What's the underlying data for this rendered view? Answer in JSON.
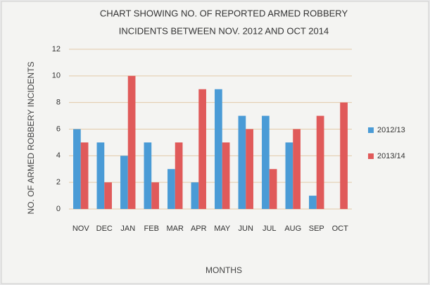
{
  "chart_data": {
    "type": "bar",
    "title": [
      "CHART SHOWING NO. OF REPORTED ARMED ROBBERY",
      "INCIDENTS BETWEEN NOV. 2012 AND OCT 2014"
    ],
    "x_label": "MONTHS",
    "y_label": "NO. OF ARMED ROBBERY INCIDENTS",
    "categories": [
      "NOV",
      "DEC",
      "JAN",
      "FEB",
      "MAR",
      "APR",
      "MAY",
      "JUN",
      "JUL",
      "AUG",
      "SEP",
      "OCT"
    ],
    "series": [
      {
        "name": "2012/13",
        "color": "#4a9bd6",
        "values": [
          6,
          5,
          4,
          5,
          3,
          2,
          9,
          7,
          7,
          5,
          1,
          null
        ]
      },
      {
        "name": "2013/14",
        "color": "#e05a5a",
        "values": [
          5,
          2,
          10,
          2,
          5,
          9,
          5,
          6,
          3,
          6,
          7,
          8
        ]
      }
    ],
    "ylim": [
      0,
      12
    ],
    "yticks": [
      0,
      2,
      4,
      6,
      8,
      10,
      12
    ],
    "grid": true,
    "legend": "right"
  }
}
